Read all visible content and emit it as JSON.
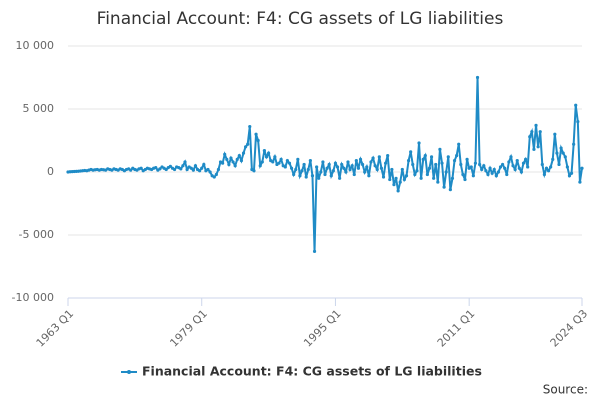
{
  "chart_data": {
    "type": "line",
    "title": "Financial Account: F4: CG assets of LG liabilities",
    "source_label": "Source:",
    "categories": [
      "1963 Q1",
      null,
      null,
      null,
      null,
      null,
      null,
      null,
      null,
      null,
      null,
      null,
      null,
      null,
      null,
      null,
      null,
      null,
      null,
      null,
      null,
      null,
      null,
      null,
      null,
      null,
      null,
      null,
      null,
      null,
      null,
      null,
      null,
      null,
      null,
      null,
      null,
      null,
      null,
      null,
      null,
      null,
      null,
      null,
      null,
      null,
      null,
      null,
      null,
      null,
      null,
      null,
      null,
      null,
      null,
      null,
      null,
      null,
      null,
      null,
      null,
      null,
      null,
      null,
      "1979 Q1",
      null,
      null,
      null,
      null,
      null,
      null,
      null,
      null,
      null,
      null,
      null,
      null,
      null,
      null,
      null,
      null,
      null,
      null,
      null,
      null,
      null,
      null,
      null,
      null,
      null,
      null,
      null,
      null,
      null,
      null,
      null,
      null,
      null,
      null,
      null,
      null,
      null,
      null,
      null,
      null,
      null,
      null,
      null,
      null,
      null,
      null,
      null,
      null,
      null,
      null,
      null,
      null,
      null,
      null,
      null,
      null,
      null,
      null,
      null,
      null,
      null,
      null,
      null,
      "1995 Q1",
      null,
      null,
      null,
      null,
      null,
      null,
      null,
      null,
      null,
      null,
      null,
      null,
      null,
      null,
      null,
      null,
      null,
      null,
      null,
      null,
      null,
      null,
      null,
      null,
      null,
      null,
      null,
      null,
      null,
      null,
      null,
      null,
      null,
      null,
      null,
      null,
      null,
      null,
      null,
      null,
      null,
      null,
      null,
      null,
      null,
      null,
      null,
      null,
      null,
      null,
      null,
      null,
      null,
      null,
      null,
      null,
      null,
      null,
      null,
      null,
      null,
      null,
      null,
      "2011 Q1",
      null,
      null,
      null,
      null,
      null,
      null,
      null,
      null,
      null,
      null,
      null,
      null,
      null,
      null,
      null,
      null,
      null,
      null,
      null,
      null,
      null,
      null,
      null,
      null,
      null,
      null,
      null,
      null,
      null,
      null,
      null,
      null,
      null,
      null,
      null,
      null,
      null,
      null,
      null,
      null,
      null,
      null,
      null,
      null,
      null,
      null,
      null,
      null,
      null,
      null,
      null,
      null,
      null,
      "2024 Q3"
    ],
    "series": [
      {
        "name": "Financial Account: F4: CG assets of LG liabilities",
        "color": "#1f8bc6",
        "values": [
          0,
          20,
          30,
          40,
          50,
          60,
          80,
          100,
          120,
          100,
          150,
          200,
          150,
          180,
          200,
          150,
          200,
          180,
          150,
          250,
          200,
          150,
          250,
          200,
          150,
          250,
          200,
          100,
          200,
          250,
          150,
          300,
          200,
          150,
          250,
          300,
          100,
          200,
          300,
          250,
          200,
          300,
          350,
          150,
          250,
          400,
          300,
          200,
          350,
          450,
          300,
          200,
          400,
          350,
          250,
          500,
          800,
          200,
          400,
          300,
          150,
          500,
          200,
          100,
          300,
          600,
          100,
          200,
          0,
          -300,
          -400,
          -200,
          200,
          800,
          700,
          1400,
          1000,
          600,
          1100,
          800,
          500,
          1000,
          1300,
          900,
          1500,
          2000,
          2200,
          3600,
          200,
          100,
          3000,
          2500,
          500,
          800,
          1700,
          1200,
          1500,
          900,
          800,
          1200,
          600,
          700,
          1000,
          500,
          400,
          900,
          700,
          300,
          -200,
          200,
          1000,
          -300,
          100,
          600,
          -400,
          200,
          900,
          -300,
          -6300,
          400,
          -500,
          0,
          800,
          -200,
          300,
          600,
          -300,
          100,
          700,
          400,
          -500,
          600,
          300,
          0,
          800,
          200,
          500,
          -200,
          900,
          300,
          1000,
          600,
          0,
          400,
          -300,
          800,
          1100,
          500,
          200,
          1200,
          300,
          -400,
          700,
          1300,
          -600,
          200,
          -1000,
          -500,
          -1500,
          -800,
          200,
          -600,
          -300,
          900,
          1600,
          600,
          -200,
          100,
          2300,
          -500,
          1000,
          1300,
          -200,
          300,
          1200,
          -500,
          600,
          -800,
          1800,
          700,
          -1200,
          0,
          1200,
          -1400,
          -500,
          900,
          1300,
          2200,
          600,
          -200,
          -600,
          1000,
          300,
          400,
          -300,
          700,
          7500,
          600,
          200,
          500,
          100,
          -200,
          300,
          -100,
          200,
          -300,
          0,
          400,
          600,
          300,
          -200,
          800,
          1200,
          500,
          200,
          900,
          300,
          0,
          700,
          1000,
          400,
          2800,
          3200,
          1800,
          3700,
          2000,
          3200,
          600,
          -200,
          300,
          100,
          400,
          1000,
          3000,
          1500,
          600,
          1900,
          1500,
          1200,
          400,
          -300,
          -100,
          2200,
          5300,
          4000,
          -800,
          300
        ]
      }
    ],
    "ylim": [
      -10000,
      10000
    ],
    "yticks": [
      {
        "value": -10000,
        "label": "-10 000"
      },
      {
        "value": -5000,
        "label": "-5 000"
      },
      0,
      {
        "value": 5000,
        "label": "5 000"
      },
      {
        "value": 10000,
        "label": "10 000"
      }
    ],
    "grid": true,
    "legend": "bottom"
  }
}
